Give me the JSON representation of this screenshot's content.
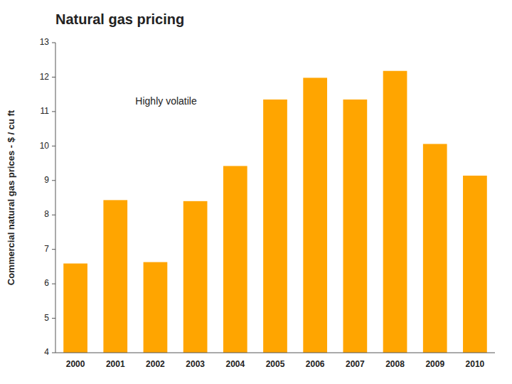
{
  "chart_data": {
    "type": "bar",
    "title": "Natural gas pricing",
    "ylabel": "Commercial natural gas prices - $ / cu ft",
    "annotation": "Highly volatile",
    "categories": [
      "2000",
      "2001",
      "2002",
      "2003",
      "2004",
      "2005",
      "2006",
      "2007",
      "2008",
      "2009",
      "2010"
    ],
    "values": [
      6.59,
      8.43,
      6.63,
      8.4,
      9.42,
      11.35,
      11.98,
      11.35,
      12.18,
      10.06,
      9.14
    ],
    "color": "#FFA500",
    "ylim": [
      4,
      13
    ],
    "yticks": [
      4,
      5,
      6,
      7,
      8,
      9,
      10,
      11,
      12,
      13
    ],
    "grid": false
  }
}
